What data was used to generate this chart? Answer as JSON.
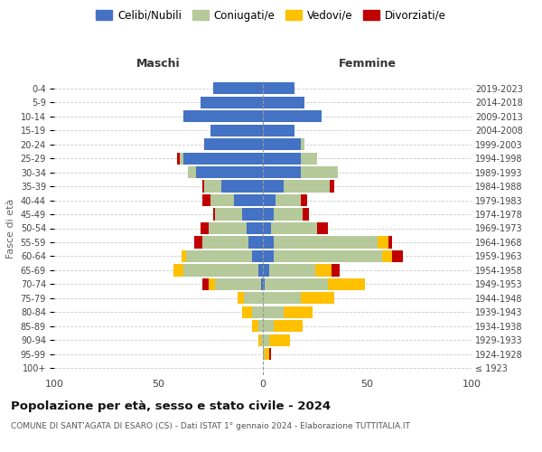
{
  "age_groups": [
    "100+",
    "95-99",
    "90-94",
    "85-89",
    "80-84",
    "75-79",
    "70-74",
    "65-69",
    "60-64",
    "55-59",
    "50-54",
    "45-49",
    "40-44",
    "35-39",
    "30-34",
    "25-29",
    "20-24",
    "15-19",
    "10-14",
    "5-9",
    "0-4"
  ],
  "birth_years": [
    "≤ 1923",
    "1924-1928",
    "1929-1933",
    "1934-1938",
    "1939-1943",
    "1944-1948",
    "1949-1953",
    "1954-1958",
    "1959-1963",
    "1964-1968",
    "1969-1973",
    "1974-1978",
    "1979-1983",
    "1984-1988",
    "1989-1993",
    "1994-1998",
    "1999-2003",
    "2004-2008",
    "2009-2013",
    "2014-2018",
    "2019-2023"
  ],
  "maschi": {
    "celibi": [
      0,
      0,
      0,
      0,
      0,
      0,
      1,
      2,
      5,
      7,
      8,
      10,
      14,
      20,
      32,
      38,
      28,
      25,
      38,
      30,
      24
    ],
    "coniugati": [
      0,
      0,
      1,
      2,
      5,
      9,
      22,
      36,
      32,
      22,
      18,
      13,
      11,
      8,
      4,
      2,
      0,
      0,
      0,
      0,
      0
    ],
    "vedovi": [
      0,
      0,
      1,
      3,
      5,
      3,
      3,
      5,
      2,
      0,
      0,
      0,
      0,
      0,
      0,
      0,
      0,
      0,
      0,
      0,
      0
    ],
    "divorziati": [
      0,
      0,
      0,
      0,
      0,
      0,
      3,
      0,
      0,
      4,
      4,
      1,
      4,
      1,
      0,
      1,
      0,
      0,
      0,
      0,
      0
    ]
  },
  "femmine": {
    "nubili": [
      0,
      0,
      0,
      0,
      0,
      0,
      1,
      3,
      5,
      5,
      4,
      5,
      6,
      10,
      18,
      18,
      18,
      15,
      28,
      20,
      15
    ],
    "coniugate": [
      0,
      1,
      3,
      5,
      10,
      18,
      30,
      22,
      52,
      50,
      22,
      14,
      12,
      22,
      18,
      8,
      2,
      0,
      0,
      0,
      0
    ],
    "vedove": [
      0,
      2,
      10,
      14,
      14,
      16,
      18,
      8,
      5,
      5,
      0,
      0,
      0,
      0,
      0,
      0,
      0,
      0,
      0,
      0,
      0
    ],
    "divorziate": [
      0,
      1,
      0,
      0,
      0,
      0,
      0,
      4,
      5,
      2,
      5,
      3,
      3,
      2,
      0,
      0,
      0,
      0,
      0,
      0,
      0
    ]
  },
  "colors": {
    "celibi": "#4472c4",
    "coniugati": "#b5c99a",
    "vedovi": "#ffc000",
    "divorziati": "#c00000"
  },
  "xlim": 100,
  "title": "Popolazione per età, sesso e stato civile - 2024",
  "subtitle": "COMUNE DI SANT'AGATA DI ESARO (CS) - Dati ISTAT 1° gennaio 2024 - Elaborazione TUTTITALIA.IT",
  "ylabel_left": "Fasce di età",
  "xlabel_left": "Maschi",
  "xlabel_right": "Femmine",
  "legend_labels": [
    "Celibi/Nubili",
    "Coniugati/e",
    "Vedovi/e",
    "Divorziati/e"
  ],
  "background_color": "#ffffff"
}
